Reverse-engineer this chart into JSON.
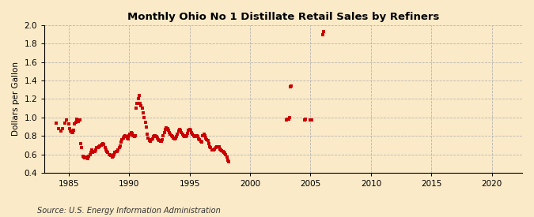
{
  "title": "Monthly Ohio No 1 Distillate Retail Sales by Refiners",
  "ylabel": "Dollars per Gallon",
  "source": "Source: U.S. Energy Information Administration",
  "xlim": [
    1983.0,
    2022.5
  ],
  "ylim": [
    0.4,
    2.0
  ],
  "xticks": [
    1985,
    1990,
    1995,
    2000,
    2005,
    2010,
    2015,
    2020
  ],
  "yticks": [
    0.4,
    0.6,
    0.8,
    1.0,
    1.2,
    1.4,
    1.6,
    1.8,
    2.0
  ],
  "background_color": "#faeac8",
  "marker_color": "#cc0000",
  "data_x": [
    1984.0,
    1984.17,
    1984.33,
    1984.5,
    1984.67,
    1984.83,
    1985.0,
    1985.08,
    1985.17,
    1985.25,
    1985.33,
    1985.42,
    1985.5,
    1985.58,
    1985.67,
    1985.75,
    1985.83,
    1985.92,
    1986.0,
    1986.08,
    1986.17,
    1986.25,
    1986.33,
    1986.42,
    1986.5,
    1986.58,
    1986.67,
    1986.75,
    1986.83,
    1986.92,
    1987.0,
    1987.08,
    1987.17,
    1987.25,
    1987.33,
    1987.42,
    1987.5,
    1987.58,
    1987.67,
    1987.75,
    1987.83,
    1987.92,
    1988.0,
    1988.08,
    1988.17,
    1988.25,
    1988.33,
    1988.42,
    1988.5,
    1988.58,
    1988.67,
    1988.75,
    1988.83,
    1988.92,
    1989.0,
    1989.08,
    1989.17,
    1989.25,
    1989.33,
    1989.42,
    1989.5,
    1989.58,
    1989.67,
    1989.75,
    1989.83,
    1989.92,
    1990.0,
    1990.08,
    1990.17,
    1990.25,
    1990.33,
    1990.42,
    1990.5,
    1990.58,
    1990.67,
    1990.75,
    1990.83,
    1990.92,
    1991.0,
    1991.08,
    1991.17,
    1991.25,
    1991.33,
    1991.42,
    1991.5,
    1991.58,
    1991.67,
    1991.75,
    1991.83,
    1991.92,
    1992.0,
    1992.08,
    1992.17,
    1992.25,
    1992.33,
    1992.42,
    1992.5,
    1992.58,
    1992.67,
    1992.75,
    1992.83,
    1992.92,
    1993.0,
    1993.08,
    1993.17,
    1993.25,
    1993.33,
    1993.42,
    1993.5,
    1993.58,
    1993.67,
    1993.75,
    1993.83,
    1993.92,
    1994.0,
    1994.08,
    1994.17,
    1994.25,
    1994.33,
    1994.42,
    1994.5,
    1994.58,
    1994.67,
    1994.75,
    1994.83,
    1994.92,
    1995.0,
    1995.08,
    1995.17,
    1995.25,
    1995.33,
    1995.42,
    1995.5,
    1995.58,
    1995.67,
    1995.75,
    1995.83,
    1995.92,
    1996.0,
    1996.08,
    1996.17,
    1996.25,
    1996.33,
    1996.42,
    1996.5,
    1996.58,
    1996.67,
    1996.75,
    1996.83,
    1996.92,
    1997.0,
    1997.08,
    1997.17,
    1997.25,
    1997.33,
    1997.42,
    1997.5,
    1997.58,
    1997.67,
    1997.75,
    1997.83,
    1997.92,
    1998.0,
    1998.08,
    1998.17,
    1998.25,
    2003.0,
    2003.08,
    2003.17,
    2003.25,
    2003.33,
    2003.42,
    2004.5,
    2004.58,
    2005.0,
    2005.08,
    2006.0,
    2006.08
  ],
  "data_y": [
    0.94,
    0.88,
    0.85,
    0.88,
    0.94,
    0.97,
    0.93,
    0.88,
    0.85,
    0.84,
    0.84,
    0.86,
    0.93,
    0.95,
    0.98,
    0.97,
    0.96,
    0.97,
    0.72,
    0.67,
    0.58,
    0.57,
    0.56,
    0.57,
    0.56,
    0.55,
    0.58,
    0.6,
    0.62,
    0.65,
    0.62,
    0.63,
    0.63,
    0.65,
    0.67,
    0.67,
    0.68,
    0.69,
    0.7,
    0.71,
    0.72,
    0.71,
    0.67,
    0.65,
    0.63,
    0.62,
    0.6,
    0.6,
    0.59,
    0.57,
    0.58,
    0.6,
    0.62,
    0.63,
    0.63,
    0.65,
    0.67,
    0.69,
    0.73,
    0.76,
    0.78,
    0.79,
    0.8,
    0.79,
    0.78,
    0.77,
    0.8,
    0.82,
    0.84,
    0.83,
    0.8,
    0.79,
    0.8,
    1.1,
    1.15,
    1.2,
    1.24,
    1.15,
    1.13,
    1.1,
    1.05,
    1.0,
    0.95,
    0.9,
    0.82,
    0.78,
    0.75,
    0.74,
    0.76,
    0.77,
    0.79,
    0.8,
    0.8,
    0.79,
    0.78,
    0.76,
    0.75,
    0.74,
    0.74,
    0.76,
    0.8,
    0.84,
    0.87,
    0.89,
    0.88,
    0.86,
    0.84,
    0.82,
    0.8,
    0.79,
    0.78,
    0.77,
    0.78,
    0.79,
    0.82,
    0.85,
    0.87,
    0.86,
    0.84,
    0.82,
    0.8,
    0.79,
    0.79,
    0.8,
    0.83,
    0.86,
    0.87,
    0.86,
    0.84,
    0.82,
    0.8,
    0.79,
    0.79,
    0.8,
    0.79,
    0.77,
    0.76,
    0.74,
    0.73,
    0.8,
    0.82,
    0.8,
    0.78,
    0.76,
    0.75,
    0.72,
    0.68,
    0.67,
    0.65,
    0.65,
    0.65,
    0.66,
    0.67,
    0.68,
    0.68,
    0.68,
    0.66,
    0.65,
    0.64,
    0.63,
    0.62,
    0.61,
    0.6,
    0.57,
    0.54,
    0.52,
    0.97,
    0.98,
    0.98,
    1.0,
    1.33,
    1.34,
    0.97,
    0.98,
    0.97,
    0.97,
    1.9,
    1.93
  ]
}
